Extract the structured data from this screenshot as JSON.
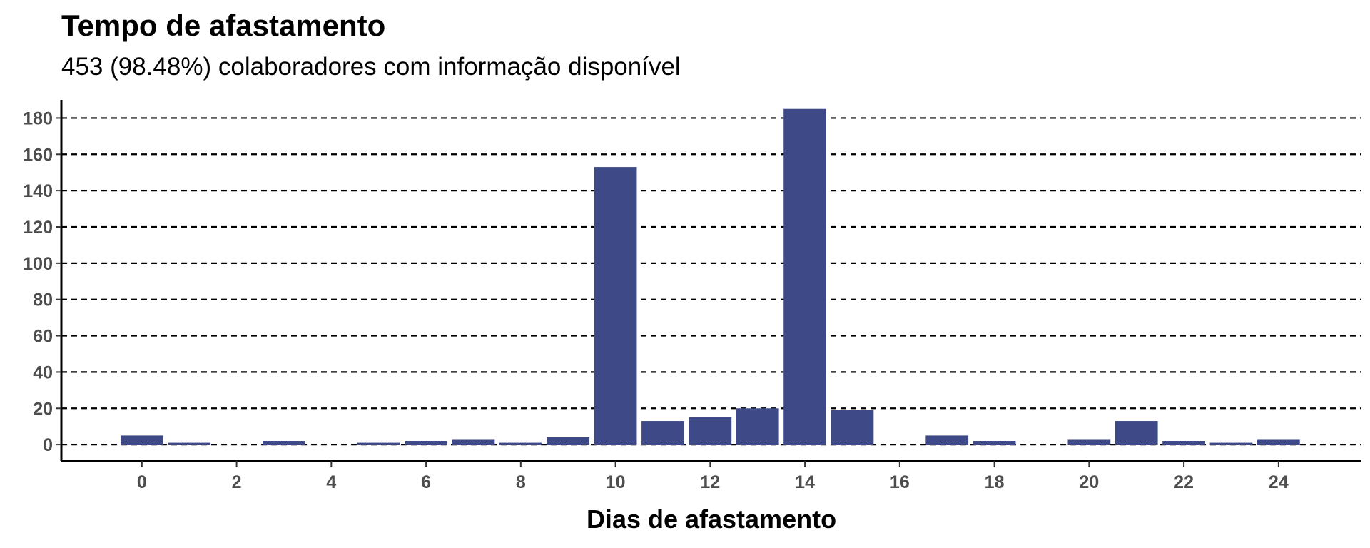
{
  "chart_data": {
    "type": "bar",
    "title": "Tempo de afastamento",
    "subtitle": "453 (98.48%) colaboradores com informação disponível",
    "xlabel": "Dias de afastamento",
    "ylabel": "",
    "x": [
      0,
      1,
      3,
      5,
      6,
      7,
      8,
      9,
      10,
      11,
      12,
      13,
      14,
      15,
      17,
      18,
      20,
      21,
      22,
      23,
      24
    ],
    "values": [
      5,
      1,
      2,
      1,
      2,
      3,
      1,
      4,
      153,
      13,
      15,
      20,
      185,
      19,
      5,
      2,
      3,
      13,
      2,
      1,
      3
    ],
    "xticks": [
      0,
      2,
      4,
      6,
      8,
      10,
      12,
      14,
      16,
      18,
      20,
      22,
      24
    ],
    "yticks": [
      0,
      20,
      40,
      60,
      80,
      100,
      120,
      140,
      160,
      180
    ],
    "xlim": [
      -1.7,
      25.75
    ],
    "ylim": [
      -9,
      190
    ],
    "grid": "horizontal dashed",
    "bar_color": "#3d4a87"
  }
}
